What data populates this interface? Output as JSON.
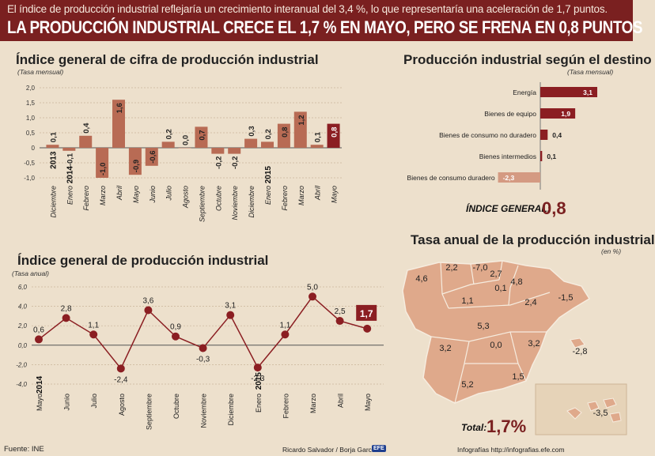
{
  "header": {
    "subtitle": "El índice de producción industrial reflejaría un crecimiento interanual del 3,4 %, lo que representaría una aceleración de 1,7 puntos.",
    "headline": "LA PRODUCCIÓN INDUSTRIAL CRECE EL 1,7 % EN MAYO, PERO SE FRENA EN 0,8 PUNTOS"
  },
  "footer": {
    "source": "Fuente: INE",
    "authors": "Ricardo Salvador / Borja García",
    "agency_logo": "EFE",
    "credit": "Infografías http://infografias.efe.com"
  },
  "colors": {
    "dark_red": "#7a2020",
    "bar": "#b86b54",
    "bar_highlight": "#8b1e22",
    "light_bar": "#d49a82",
    "map": "#dfa98b"
  },
  "chart_data": [
    {
      "id": "monthly",
      "type": "bar",
      "title": "Índice general de cifra de producción industrial",
      "note": "(Tasa mensual)",
      "ylim": [
        -1.0,
        2.0
      ],
      "yticks": [
        "2,0",
        "1,5",
        "1,0",
        "0,5",
        "0",
        "-0,5",
        "-1,0"
      ],
      "categories": [
        "Diciembre",
        "Enero",
        "Febrero",
        "Marzo",
        "Abril",
        "Mayo",
        "Junio",
        "Julio",
        "Agosto",
        "Septiembre",
        "Octubre",
        "Noviembre",
        "Diciembre",
        "Enero",
        "Febrero",
        "Marzo",
        "Abril",
        "Mayo"
      ],
      "year_labels": [
        "2013",
        "2014",
        "",
        "",
        "",
        "",
        "",
        "",
        "",
        "",
        "",
        "",
        "",
        "2015",
        "",
        "",
        "",
        ""
      ],
      "values": [
        0.1,
        -0.1,
        0.4,
        -1.0,
        1.6,
        -0.9,
        -0.6,
        0.2,
        0.0,
        0.7,
        -0.2,
        -0.2,
        0.3,
        0.2,
        0.8,
        1.2,
        0.1,
        0.8
      ],
      "labels": [
        "0,1",
        "-0,1",
        "0,4",
        "-1,0",
        "1,6",
        "-0,9",
        "-0,6",
        "0,2",
        "0,0",
        "0,7",
        "-0,2",
        "-0,2",
        "0,3",
        "0,2",
        "0,8",
        "1,2",
        "0,1",
        "0,8"
      ],
      "highlight_index": 17
    },
    {
      "id": "destino",
      "type": "bar",
      "orientation": "horizontal",
      "title": "Producción industrial según el destino",
      "note": "(Tasa mensual)",
      "categories": [
        "Energía",
        "Bienes de equipo",
        "Bienes de consumo no duradero",
        "Bienes intermedios",
        "Bienes de consumo duradero"
      ],
      "values": [
        3.1,
        1.9,
        0.4,
        0.1,
        -2.3
      ],
      "labels": [
        "3,1",
        "1,9",
        "0,4",
        "0,1",
        "-2,3"
      ],
      "index_label": "ÍNDICE GENERAL:",
      "index_value": "0,8"
    },
    {
      "id": "annual_line",
      "type": "line",
      "title": "Índice general de producción industrial",
      "note": "(Tasa anual)",
      "ylim": [
        -4.0,
        6.0
      ],
      "yticks": [
        "6,0",
        "4,0",
        "2,0",
        "0,0",
        "-2,0",
        "-4,0"
      ],
      "categories": [
        "Mayo",
        "Junio",
        "Julio",
        "Agosto",
        "Septiembre",
        "Octubre",
        "Noviembre",
        "Diciembre",
        "Enero",
        "Febrero",
        "Marzo",
        "Abril",
        "Mayo"
      ],
      "year_labels": [
        "2014",
        "",
        "",
        "",
        "",
        "",
        "",
        "",
        "2015",
        "",
        "",
        "",
        ""
      ],
      "values": [
        0.6,
        2.8,
        1.1,
        -2.4,
        3.6,
        0.9,
        -0.3,
        3.1,
        -2.3,
        1.1,
        5.0,
        2.5,
        1.7
      ],
      "labels": [
        "0,6",
        "2,8",
        "1,1",
        "-2,4",
        "3,6",
        "0,9",
        "-0,3",
        "3,1",
        "-2,3",
        "1,1",
        "5,0",
        "2,5",
        "1,7"
      ],
      "highlight_index": 12
    },
    {
      "id": "regions",
      "type": "map",
      "title": "Tasa anual de la producción industrial",
      "note": "(en %)",
      "region_values": [
        "4,6",
        "2,2",
        "-7,0",
        "2,7",
        "4,8",
        "0,1",
        "1,1",
        "2,4",
        "-1,5",
        "5,3",
        "0,0",
        "3,2",
        "3,2",
        "-2,8",
        "1,5",
        "5,2",
        "-3,5"
      ],
      "total_label": "Total:",
      "total_value": "1,7%"
    }
  ]
}
